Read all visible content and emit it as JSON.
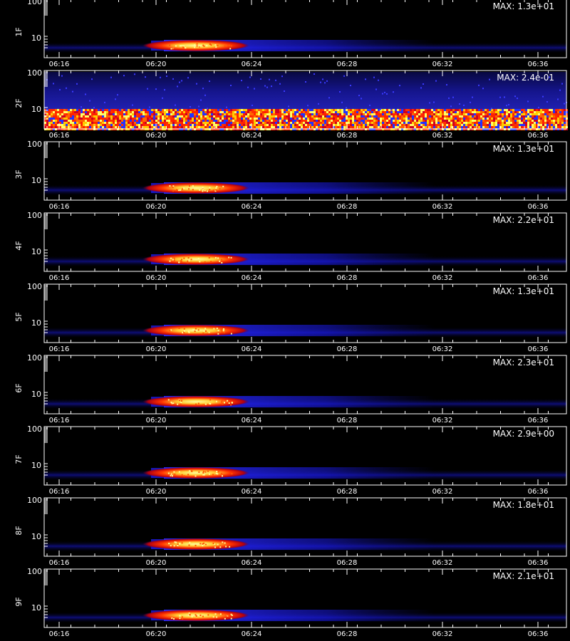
{
  "chart_data": [
    {
      "type": "heatmap",
      "ylabel": "1F",
      "max_label": "MAX: 1.3e+01",
      "yticks": [
        "10",
        "100"
      ],
      "xticks": [
        "06:16",
        "06:20",
        "06:24",
        "06:28",
        "06:32",
        "06:36"
      ],
      "burst": true,
      "noise_floor": false
    },
    {
      "type": "heatmap",
      "ylabel": "2F",
      "max_label": "MAX: 2.4e-01",
      "yticks": [
        "10",
        "100"
      ],
      "xticks": [
        "06:16",
        "06:20",
        "06:24",
        "06:28",
        "06:32",
        "06:36"
      ],
      "burst": false,
      "noise_floor": true
    },
    {
      "type": "heatmap",
      "ylabel": "3F",
      "max_label": "MAX: 1.3e+01",
      "yticks": [
        "10",
        "100"
      ],
      "xticks": [
        "06:16",
        "06:20",
        "06:24",
        "06:28",
        "06:32",
        "06:36"
      ],
      "burst": true,
      "noise_floor": false
    },
    {
      "type": "heatmap",
      "ylabel": "4F",
      "max_label": "MAX: 2.2e+01",
      "yticks": [
        "10",
        "100"
      ],
      "xticks": [
        "06:16",
        "06:20",
        "06:24",
        "06:28",
        "06:32",
        "06:36"
      ],
      "burst": true,
      "noise_floor": false
    },
    {
      "type": "heatmap",
      "ylabel": "5F",
      "max_label": "MAX: 1.3e+01",
      "yticks": [
        "10",
        "100"
      ],
      "xticks": [
        "06:16",
        "06:20",
        "06:24",
        "06:28",
        "06:32",
        "06:36"
      ],
      "burst": true,
      "noise_floor": false
    },
    {
      "type": "heatmap",
      "ylabel": "6F",
      "max_label": "MAX: 2.3e+01",
      "yticks": [
        "10",
        "100"
      ],
      "xticks": [
        "06:16",
        "06:20",
        "06:24",
        "06:28",
        "06:32",
        "06:36"
      ],
      "burst": true,
      "noise_floor": false
    },
    {
      "type": "heatmap",
      "ylabel": "7F",
      "max_label": "MAX: 2.9e+00",
      "yticks": [
        "10",
        "100"
      ],
      "xticks": [
        "06:16",
        "06:20",
        "06:24",
        "06:28",
        "06:32",
        "06:36"
      ],
      "burst": true,
      "noise_floor": false
    },
    {
      "type": "heatmap",
      "ylabel": "8F",
      "max_label": "MAX: 1.8e+01",
      "yticks": [
        "10",
        "100"
      ],
      "xticks": [
        "06:16",
        "06:20",
        "06:24",
        "06:28",
        "06:32",
        "06:36"
      ],
      "burst": true,
      "noise_floor": false
    },
    {
      "type": "heatmap",
      "ylabel": "9F",
      "max_label": "MAX: 2.1e+01",
      "yticks": [
        "10",
        "100"
      ],
      "xticks": [
        "06:16",
        "06:20",
        "06:24",
        "06:28",
        "06:32",
        "06:36"
      ],
      "burst": true,
      "noise_floor": false
    }
  ],
  "colors": {
    "background": "#000000",
    "axes": "#ffffff",
    "low": "#1a1aff",
    "mid": "#ff2a00",
    "high": "#ffff66"
  }
}
